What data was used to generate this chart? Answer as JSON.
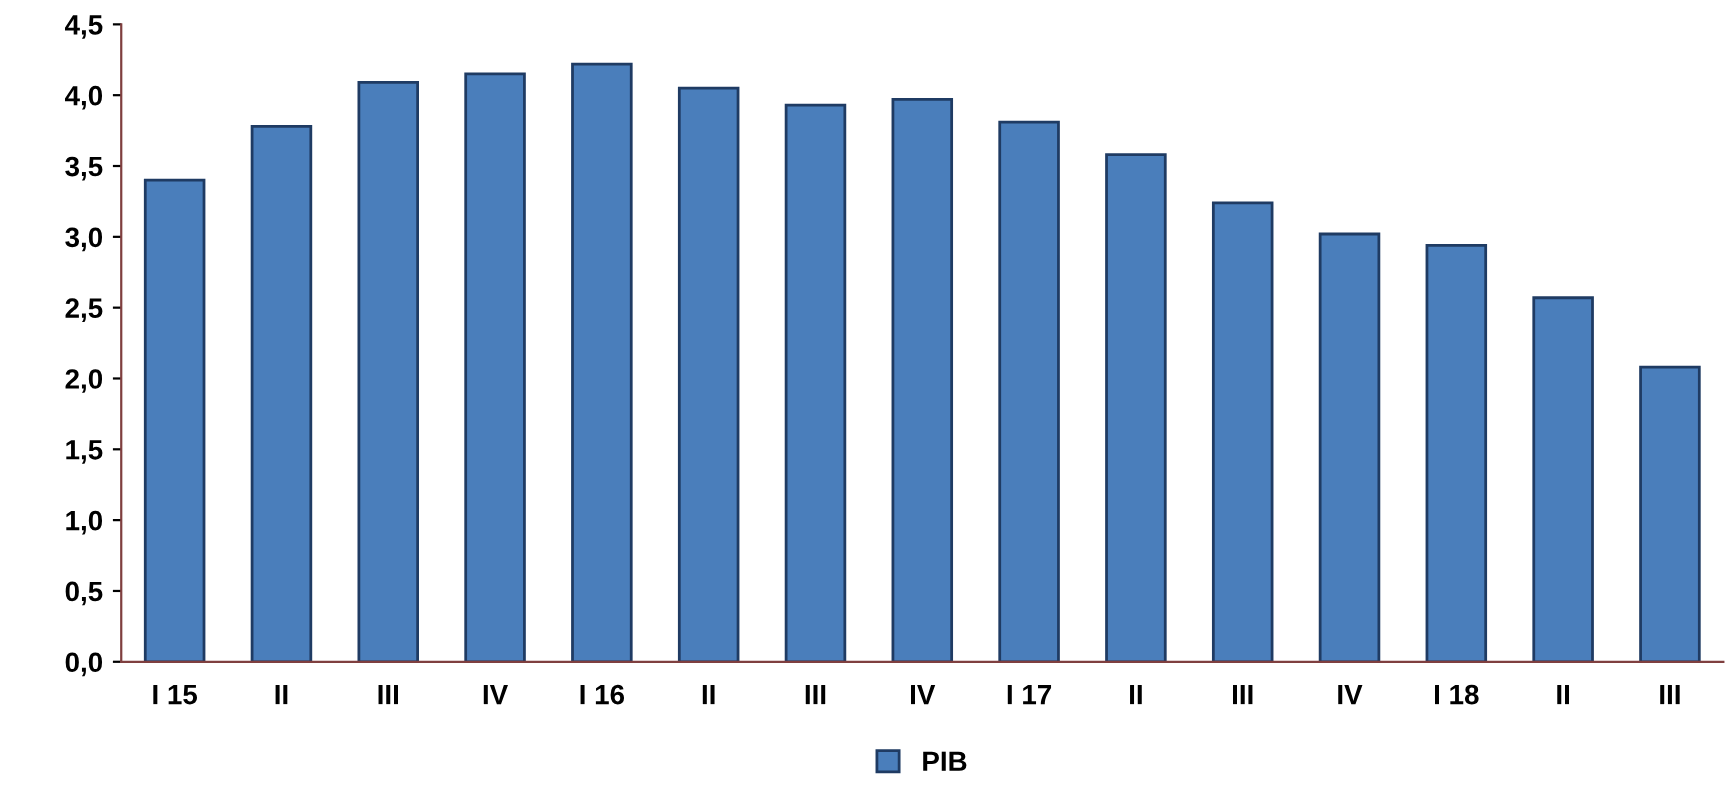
{
  "chart_data": {
    "type": "bar",
    "categories": [
      "I 15",
      "II",
      "III",
      "IV",
      "I 16",
      "II",
      "III",
      "IV",
      "I 17",
      "II",
      "III",
      "IV",
      "I 18",
      "II",
      "III"
    ],
    "series": [
      {
        "name": "PIB",
        "color": "#4a7ebb",
        "values": [
          3.4,
          3.78,
          4.09,
          4.15,
          4.22,
          4.05,
          3.93,
          3.97,
          3.81,
          3.58,
          3.24,
          3.02,
          2.94,
          2.57,
          2.08
        ]
      }
    ],
    "ylim": [
      0,
      4.5
    ],
    "yticks": [
      {
        "value": 0,
        "label": "0,0"
      },
      {
        "value": 0.5,
        "label": "0,5"
      },
      {
        "value": 1,
        "label": "1,0"
      },
      {
        "value": 1.5,
        "label": "1,5"
      },
      {
        "value": 2,
        "label": "2,0"
      },
      {
        "value": 2.5,
        "label": "2,5"
      },
      {
        "value": 3,
        "label": "3,0"
      },
      {
        "value": 3.5,
        "label": "3,5"
      },
      {
        "value": 4,
        "label": "4,0"
      },
      {
        "value": 4.5,
        "label": "4,5"
      }
    ],
    "grid": false,
    "legend": "bottom"
  }
}
